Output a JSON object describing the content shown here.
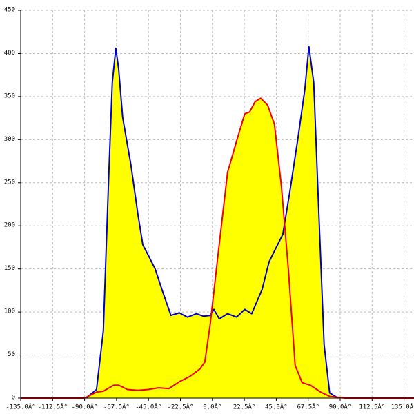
{
  "chart_data": {
    "type": "area",
    "xlim": [
      -135,
      142
    ],
    "ylim": [
      0,
      450
    ],
    "xticks": [
      {
        "value": -135,
        "label": "-135.0Â°"
      },
      {
        "value": -112.5,
        "label": "-112.5Â°"
      },
      {
        "value": -90,
        "label": "-90.0Â°"
      },
      {
        "value": -67.5,
        "label": "-67.5Â°"
      },
      {
        "value": -45,
        "label": "-45.0Â°"
      },
      {
        "value": -22.5,
        "label": "-22.5Â°"
      },
      {
        "value": 0,
        "label": "0.0Â°"
      },
      {
        "value": 22.5,
        "label": "22.5Â°"
      },
      {
        "value": 45,
        "label": "45.0Â°"
      },
      {
        "value": 67.5,
        "label": "67.5Â°"
      },
      {
        "value": 90,
        "label": "90.0Â°"
      },
      {
        "value": 112.5,
        "label": "112.5Â°"
      },
      {
        "value": 135,
        "label": "135.0Â°"
      }
    ],
    "yticks": [
      0,
      50,
      100,
      150,
      200,
      250,
      300,
      350,
      400,
      450
    ],
    "grid": true,
    "fill_color": "#ffff00",
    "series": [
      {
        "color": "#0000cc",
        "x": [
          -89,
          -81.6,
          -76.8,
          -72.9,
          -70.5,
          -68,
          -66,
          -63.2,
          -57.3,
          -52.5,
          -49,
          -45.2,
          -40.3,
          -35.5,
          -29.2,
          -23.3,
          -17.5,
          -11.2,
          -6.3,
          -1.5,
          1,
          4.9,
          10.7,
          17,
          22.8,
          27.7,
          35,
          39.9,
          44.7,
          49.6,
          54.4,
          60.3,
          65.1,
          68,
          71.4,
          74.8,
          78.7,
          82.6,
          88.5
        ],
        "values": [
          0,
          10,
          78,
          262,
          366,
          406,
          382,
          326,
          270,
          214,
          178,
          166,
          150,
          126,
          96,
          99,
          94,
          98,
          95,
          96,
          103,
          92,
          98,
          94,
          103,
          98,
          126,
          158,
          174,
          190,
          238,
          302,
          358,
          408,
          366,
          222,
          62,
          6,
          0
        ]
      },
      {
        "color": "#ee0000",
        "x": [
          -135,
          -90,
          -81.6,
          -76.8,
          -69.5,
          -66,
          -59.8,
          -52.5,
          -45.2,
          -37.9,
          -30.6,
          -23.3,
          -16,
          -8.7,
          -5.3,
          -1.5,
          3.4,
          10.7,
          17,
          22.8,
          26.2,
          30.1,
          34,
          38.9,
          43.7,
          48.6,
          53.5,
          58.3,
          63.2,
          69,
          76.3,
          82.6,
          93.3,
          142
        ],
        "values": [
          0,
          0,
          7,
          8,
          15,
          15,
          10,
          9,
          10,
          12,
          11,
          19,
          25,
          34,
          42,
          86,
          158,
          262,
          298,
          330,
          332,
          344,
          348,
          340,
          318,
          246,
          150,
          38,
          18,
          15,
          7,
          2,
          0,
          0
        ]
      }
    ]
  }
}
